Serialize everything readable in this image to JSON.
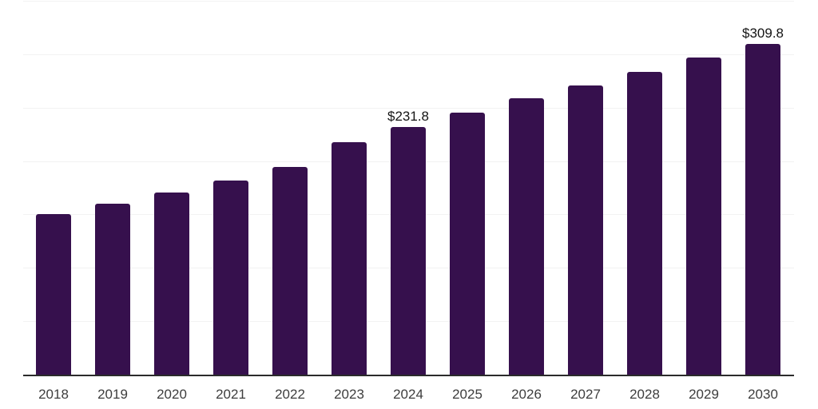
{
  "chart_data": {
    "type": "bar",
    "title": "",
    "xlabel": "",
    "ylabel": "",
    "categories": [
      "2018",
      "2019",
      "2020",
      "2021",
      "2022",
      "2023",
      "2024",
      "2025",
      "2026",
      "2027",
      "2028",
      "2029",
      "2030"
    ],
    "values": [
      150.2,
      160.0,
      170.7,
      181.4,
      194.2,
      218.0,
      231.8,
      245.3,
      258.5,
      270.5,
      283.4,
      297.1,
      309.8
    ],
    "labeled_points": [
      {
        "category": "2024",
        "text": "$231.8"
      },
      {
        "category": "2030",
        "text": "$309.8"
      }
    ],
    "ylim": [
      0,
      350
    ],
    "gridline_step": 50,
    "grid": "horizontal-only, no y-axis tick labels",
    "legend_position": "none",
    "colors": {
      "bar_fill": "#36104D",
      "gridline": "#f2f2f2",
      "axis_line": "#2b2b2b",
      "tick_label": "#3d3d3d",
      "data_label": "#141414",
      "background": "#ffffff"
    }
  }
}
